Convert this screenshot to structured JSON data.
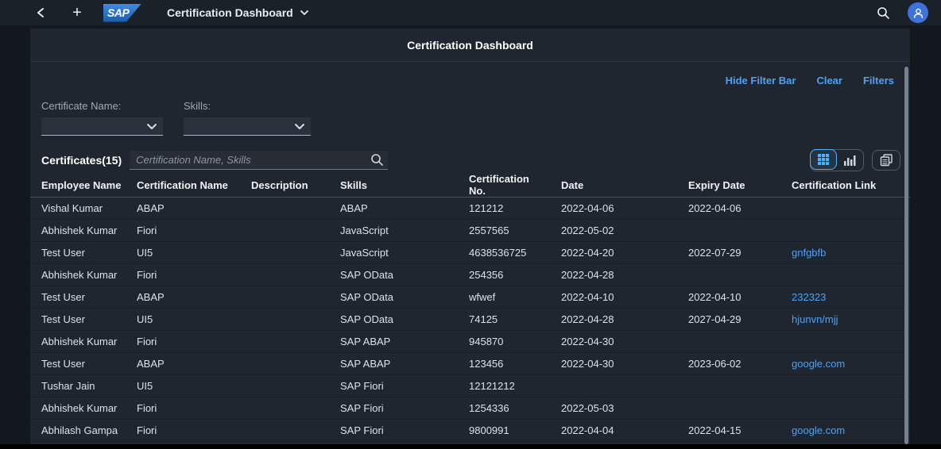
{
  "shell": {
    "logo_text": "SAP",
    "app_title": "Certification Dashboard"
  },
  "page": {
    "title": "Certification Dashboard"
  },
  "filter_bar": {
    "hide_filter_bar": "Hide Filter Bar",
    "clear": "Clear",
    "filters": "Filters",
    "certificate_name_label": "Certificate Name:",
    "certificate_name_value": "",
    "skills_label": "Skills:",
    "skills_value": ""
  },
  "table": {
    "title": "Certificates(15)",
    "search_placeholder": "Certification Name, Skills",
    "columns": [
      "Employee Name",
      "Certification Name",
      "Description",
      "Skills",
      "Certification No.",
      "Date",
      "Expiry Date",
      "Certification Link"
    ],
    "rows": [
      {
        "employee": "Vishal Kumar",
        "certification": "ABAP",
        "description": "",
        "skills": "ABAP",
        "cert_no": "121212",
        "date": "2022-04-06",
        "expiry": "2022-04-06",
        "link": ""
      },
      {
        "employee": "Abhishek Kumar",
        "certification": "Fiori",
        "description": "",
        "skills": "JavaScript",
        "cert_no": "2557565",
        "date": "2022-05-02",
        "expiry": "",
        "link": ""
      },
      {
        "employee": "Test User",
        "certification": "UI5",
        "description": "",
        "skills": "JavaScript",
        "cert_no": "4638536725",
        "date": "2022-04-20",
        "expiry": "2022-07-29",
        "link": "gnfgbfb"
      },
      {
        "employee": "Abhishek Kumar",
        "certification": "Fiori",
        "description": "",
        "skills": "SAP OData",
        "cert_no": "254356",
        "date": "2022-04-28",
        "expiry": "",
        "link": ""
      },
      {
        "employee": "Test User",
        "certification": "ABAP",
        "description": "",
        "skills": "SAP OData",
        "cert_no": "wfwef",
        "date": "2022-04-10",
        "expiry": "2022-04-10",
        "link": "232323"
      },
      {
        "employee": "Test User",
        "certification": "UI5",
        "description": "",
        "skills": "SAP OData",
        "cert_no": "74125",
        "date": "2022-04-28",
        "expiry": "2027-04-29",
        "link": "hjunvn/mjj"
      },
      {
        "employee": "Abhishek Kumar",
        "certification": "Fiori",
        "description": "",
        "skills": "SAP ABAP",
        "cert_no": "945870",
        "date": "2022-04-30",
        "expiry": "",
        "link": ""
      },
      {
        "employee": "Test User",
        "certification": "ABAP",
        "description": "",
        "skills": "SAP ABAP",
        "cert_no": "123456",
        "date": "2022-04-30",
        "expiry": "2023-06-02",
        "link": "google.com"
      },
      {
        "employee": "Tushar Jain",
        "certification": "UI5",
        "description": "",
        "skills": "SAP Fiori",
        "cert_no": "12121212",
        "date": "",
        "expiry": "",
        "link": ""
      },
      {
        "employee": "Abhishek Kumar",
        "certification": "Fiori",
        "description": "",
        "skills": "SAP Fiori",
        "cert_no": "1254336",
        "date": "2022-05-03",
        "expiry": "",
        "link": ""
      },
      {
        "employee": "Abhilash Gampa",
        "certification": "Fiori",
        "description": "",
        "skills": "SAP Fiori",
        "cert_no": "9800991",
        "date": "2022-04-04",
        "expiry": "2022-04-15",
        "link": "google.com"
      }
    ]
  },
  "colors": {
    "link_blue": "#4da1f5",
    "avatar_blue": "#3d73d9",
    "selected_view_blue": "#4db1ff",
    "card_background": "#20262f",
    "shell_background": "#1b2129"
  }
}
